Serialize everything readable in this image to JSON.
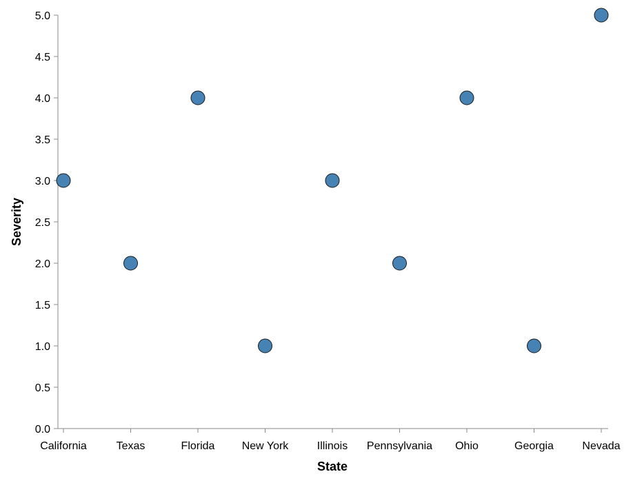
{
  "chart_data": {
    "type": "scatter",
    "title": "",
    "xlabel": "State",
    "ylabel": "Severity",
    "categories": [
      "California",
      "Texas",
      "Florida",
      "New York",
      "Illinois",
      "Pennsylvania",
      "Ohio",
      "Georgia",
      "Nevada"
    ],
    "series": [
      {
        "values": [
          3,
          2,
          4,
          1,
          3,
          2,
          4,
          1,
          5
        ]
      }
    ],
    "ylim": [
      0,
      5
    ],
    "yticks": [
      "0.0",
      "0.5",
      "1.0",
      "1.5",
      "2.0",
      "2.5",
      "3.0",
      "3.5",
      "4.0",
      "4.5",
      "5.0"
    ],
    "ytick_values": [
      0,
      0.5,
      1,
      1.5,
      2,
      2.5,
      3,
      3.5,
      4,
      4.5,
      5
    ],
    "grid": false,
    "legend": "none",
    "colors": {
      "point_fill": "#4682b4",
      "point_stroke": "#1a1a1a",
      "axis": "#888888"
    }
  }
}
